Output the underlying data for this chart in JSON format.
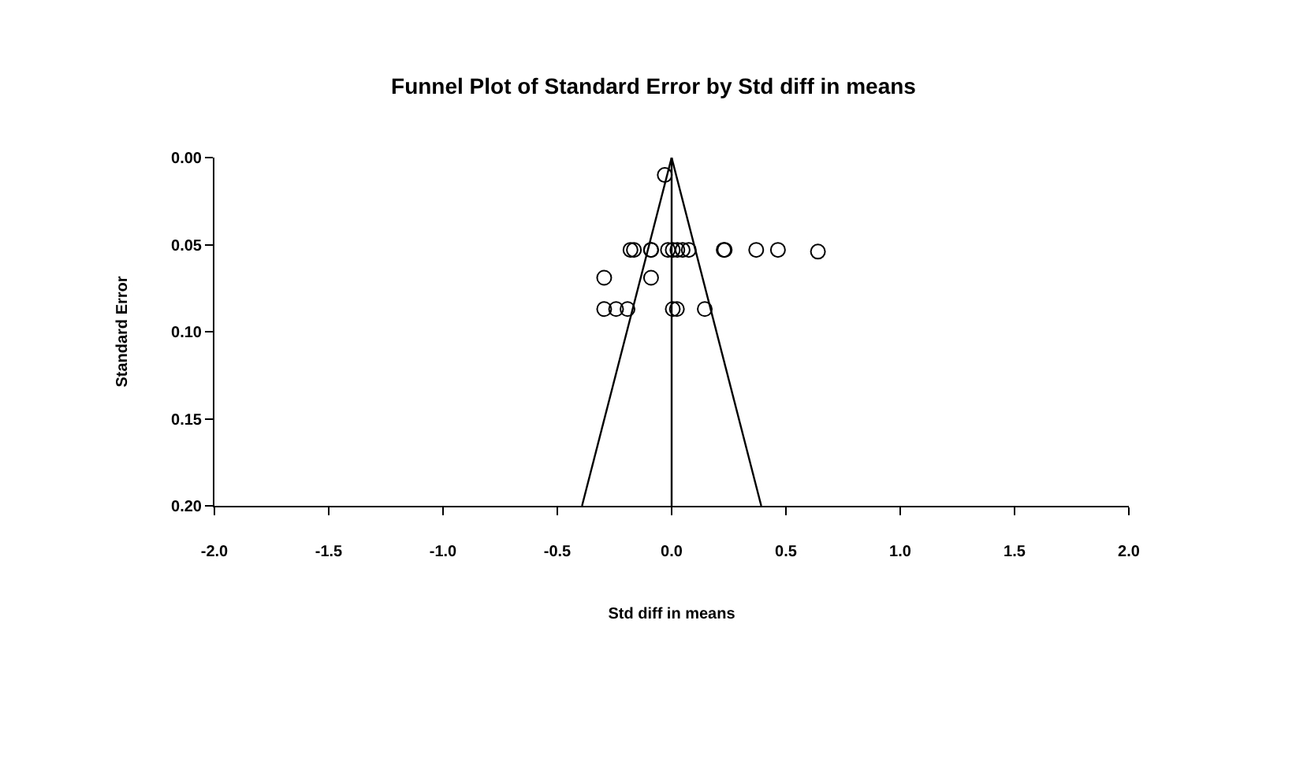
{
  "chart_data": {
    "type": "scatter",
    "title": "Funnel Plot of Standard Error by Std diff in means",
    "xlabel": "Std diff in means",
    "ylabel": "Standard Error",
    "xlim": [
      -2.0,
      2.0
    ],
    "xticks": [
      {
        "value": -2,
        "label": "-2.0"
      },
      {
        "value": -1.5,
        "label": "-1.5"
      },
      {
        "value": -1,
        "label": "-1.0"
      },
      {
        "value": -0.5,
        "label": "-0.5"
      },
      {
        "value": 0,
        "label": "0.0"
      },
      {
        "value": 0.5,
        "label": "0.5"
      },
      {
        "value": 1,
        "label": "1.0"
      },
      {
        "value": 1.5,
        "label": "1.5"
      },
      {
        "value": 2,
        "label": "2.0"
      }
    ],
    "ylim": [
      0.2,
      0.0
    ],
    "yticks": [
      {
        "value": 0,
        "label": "0.00"
      },
      {
        "value": 0.05,
        "label": "0.05"
      },
      {
        "value": 0.1,
        "label": "0.10"
      },
      {
        "value": 0.15,
        "label": "0.15"
      },
      {
        "value": 0.2,
        "label": "0.20"
      }
    ],
    "marker": "circle",
    "series": [
      {
        "color": "#000000",
        "x": [
          -0.03,
          -0.18,
          -0.165,
          -0.09,
          -0.09,
          -0.016,
          0.005,
          0.025,
          0.048,
          0.075,
          0.228,
          0.232,
          0.37,
          0.465,
          0.64,
          -0.295,
          -0.09,
          -0.295,
          -0.243,
          -0.193,
          0.005,
          0.023,
          0.145
        ],
        "values": [
          0.01,
          0.053,
          0.053,
          0.053,
          0.053,
          0.053,
          0.053,
          0.053,
          0.053,
          0.053,
          0.053,
          0.053,
          0.053,
          0.053,
          0.054,
          0.069,
          0.069,
          0.087,
          0.087,
          0.087,
          0.087,
          0.087,
          0.087
        ]
      },
      {
        "type": "line",
        "color": "#000000",
        "marker": "none",
        "x": [
          0,
          -0.392
        ],
        "values": [
          0,
          0.2
        ]
      },
      {
        "type": "line",
        "color": "#000000",
        "marker": "none",
        "x": [
          0,
          0.392
        ],
        "values": [
          0,
          0.2
        ]
      }
    ],
    "ref_lines": [
      {
        "axis": "x",
        "value": 0,
        "color": "#000000"
      }
    ]
  }
}
